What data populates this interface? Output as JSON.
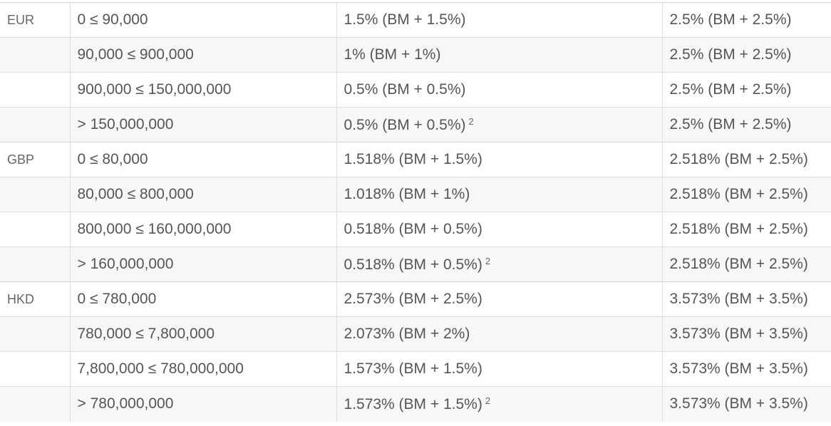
{
  "groups": [
    {
      "currency": "EUR",
      "rows": [
        {
          "tier": "0 ≤ 90,000",
          "rate1": "1.5% (BM + 1.5%)",
          "note": "",
          "rate2": "2.5% (BM + 2.5%)"
        },
        {
          "tier": "90,000 ≤ 900,000",
          "rate1": "1% (BM + 1%)",
          "note": "",
          "rate2": "2.5% (BM + 2.5%)"
        },
        {
          "tier": "900,000 ≤ 150,000,000",
          "rate1": "0.5% (BM + 0.5%)",
          "note": "",
          "rate2": "2.5% (BM + 2.5%)"
        },
        {
          "tier": "> 150,000,000",
          "rate1": "0.5% (BM + 0.5%)",
          "note": "2",
          "rate2": "2.5% (BM + 2.5%)"
        }
      ]
    },
    {
      "currency": "GBP",
      "rows": [
        {
          "tier": "0 ≤ 80,000",
          "rate1": "1.518% (BM + 1.5%)",
          "note": "",
          "rate2": "2.518% (BM + 2.5%)"
        },
        {
          "tier": "80,000 ≤ 800,000",
          "rate1": "1.018% (BM + 1%)",
          "note": "",
          "rate2": "2.518% (BM + 2.5%)"
        },
        {
          "tier": "800,000 ≤ 160,000,000",
          "rate1": "0.518% (BM + 0.5%)",
          "note": "",
          "rate2": "2.518% (BM + 2.5%)"
        },
        {
          "tier": "> 160,000,000",
          "rate1": "0.518% (BM + 0.5%)",
          "note": "2",
          "rate2": "2.518% (BM + 2.5%)"
        }
      ]
    },
    {
      "currency": "HKD",
      "rows": [
        {
          "tier": "0 ≤ 780,000",
          "rate1": "2.573% (BM + 2.5%)",
          "note": "",
          "rate2": "3.573% (BM + 3.5%)"
        },
        {
          "tier": "780,000 ≤ 7,800,000",
          "rate1": "2.073% (BM + 2%)",
          "note": "",
          "rate2": "3.573% (BM + 3.5%)"
        },
        {
          "tier": "7,800,000 ≤ 780,000,000",
          "rate1": "1.573% (BM + 1.5%)",
          "note": "",
          "rate2": "3.573% (BM + 3.5%)"
        },
        {
          "tier": "> 780,000,000",
          "rate1": "1.573% (BM + 1.5%)",
          "note": "2",
          "rate2": "3.573% (BM + 3.5%)"
        }
      ]
    }
  ]
}
